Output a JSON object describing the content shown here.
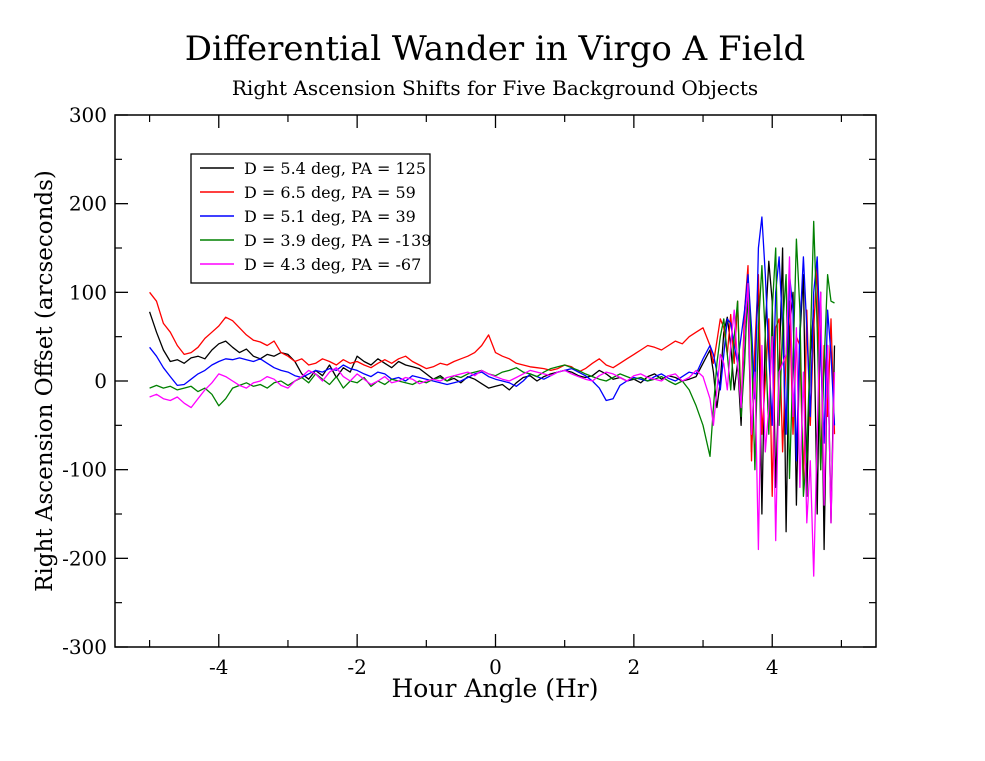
{
  "chart_data": {
    "type": "line",
    "title": "Differential Wander in Virgo A Field",
    "subtitle": "Right Ascension Shifts for Five Background Objects",
    "xlabel": "Hour Angle (Hr)",
    "ylabel": "Right Ascension Offset (arcseconds)",
    "xlim": [
      -5.5,
      5.5
    ],
    "ylim": [
      -300,
      300
    ],
    "x_major_ticks": [
      -4,
      -2,
      0,
      2,
      4
    ],
    "x_tick_labels": [
      "-4",
      "-2",
      "0",
      "2",
      "4"
    ],
    "x_minor_ticks": [
      -5,
      -3,
      -1,
      1,
      3,
      5
    ],
    "y_major_ticks": [
      -300,
      -200,
      -100,
      0,
      100,
      200,
      300
    ],
    "y_tick_labels": [
      "-300",
      "-200",
      "-100",
      "0",
      "100",
      "200",
      "300"
    ],
    "y_minor_ticks": [
      -250,
      -150,
      -50,
      50,
      150,
      250
    ],
    "legend_position": "top-left",
    "series": [
      {
        "name": "D = 5.4 deg, PA = 125",
        "color": "#000000",
        "x": [
          -5.0,
          -4.9,
          -4.8,
          -4.7,
          -4.6,
          -4.5,
          -4.4,
          -4.3,
          -4.2,
          -4.1,
          -4.0,
          -3.9,
          -3.8,
          -3.7,
          -3.6,
          -3.5,
          -3.4,
          -3.3,
          -3.2,
          -3.1,
          -3.0,
          -2.9,
          -2.8,
          -2.7,
          -2.6,
          -2.5,
          -2.4,
          -2.3,
          -2.2,
          -2.1,
          -2.0,
          -1.9,
          -1.8,
          -1.7,
          -1.6,
          -1.5,
          -1.4,
          -1.3,
          -1.2,
          -1.1,
          -1.0,
          -0.9,
          -0.8,
          -0.7,
          -0.6,
          -0.5,
          -0.4,
          -0.3,
          -0.2,
          -0.1,
          0.0,
          0.1,
          0.2,
          0.3,
          0.4,
          0.5,
          0.6,
          0.7,
          0.8,
          0.9,
          1.0,
          1.1,
          1.2,
          1.3,
          1.4,
          1.5,
          1.6,
          1.7,
          1.8,
          1.9,
          2.0,
          2.1,
          2.2,
          2.3,
          2.4,
          2.5,
          2.6,
          2.7,
          2.8,
          2.9,
          3.0,
          3.1,
          3.15,
          3.2,
          3.25,
          3.3,
          3.35,
          3.4,
          3.45,
          3.5,
          3.55,
          3.6,
          3.65,
          3.7,
          3.75,
          3.8,
          3.85,
          3.9,
          3.95,
          4.0,
          4.05,
          4.1,
          4.15,
          4.2,
          4.25,
          4.3,
          4.35,
          4.4,
          4.45,
          4.5,
          4.55,
          4.6,
          4.65,
          4.7,
          4.75,
          4.8,
          4.85,
          4.9
        ],
        "values": [
          78,
          55,
          35,
          22,
          24,
          20,
          26,
          28,
          25,
          35,
          42,
          45,
          38,
          32,
          36,
          28,
          25,
          30,
          28,
          32,
          30,
          22,
          8,
          2,
          12,
          6,
          18,
          4,
          15,
          10,
          28,
          22,
          18,
          25,
          20,
          15,
          22,
          18,
          16,
          14,
          8,
          2,
          6,
          0,
          3,
          -2,
          5,
          2,
          -3,
          -8,
          -6,
          -4,
          -10,
          -2,
          4,
          6,
          0,
          5,
          8,
          10,
          12,
          10,
          6,
          4,
          6,
          12,
          8,
          2,
          4,
          0,
          2,
          -2,
          5,
          8,
          2,
          6,
          4,
          0,
          2,
          5,
          20,
          35,
          10,
          -30,
          0,
          55,
          72,
          40,
          -10,
          20,
          -50,
          60,
          90,
          -80,
          20,
          110,
          -150,
          60,
          135,
          90,
          -120,
          10,
          150,
          -170,
          60,
          100,
          -140,
          50,
          120,
          -130,
          30,
          80,
          -150,
          100,
          -190,
          40,
          -160,
          40
        ]
      },
      {
        "name": "D = 6.5 deg, PA = 59",
        "color": "#ff0000",
        "x": [
          -5.0,
          -4.9,
          -4.8,
          -4.7,
          -4.6,
          -4.5,
          -4.4,
          -4.3,
          -4.2,
          -4.1,
          -4.0,
          -3.9,
          -3.8,
          -3.7,
          -3.6,
          -3.5,
          -3.4,
          -3.3,
          -3.2,
          -3.1,
          -3.0,
          -2.9,
          -2.8,
          -2.7,
          -2.6,
          -2.5,
          -2.4,
          -2.3,
          -2.2,
          -2.1,
          -2.0,
          -1.9,
          -1.8,
          -1.7,
          -1.6,
          -1.5,
          -1.4,
          -1.3,
          -1.2,
          -1.1,
          -1.0,
          -0.9,
          -0.8,
          -0.7,
          -0.6,
          -0.5,
          -0.4,
          -0.3,
          -0.2,
          -0.1,
          0.0,
          0.1,
          0.2,
          0.3,
          0.4,
          0.5,
          0.6,
          0.7,
          0.8,
          0.9,
          1.0,
          1.1,
          1.2,
          1.3,
          1.4,
          1.5,
          1.6,
          1.7,
          1.8,
          1.9,
          2.0,
          2.1,
          2.2,
          2.3,
          2.4,
          2.5,
          2.6,
          2.7,
          2.8,
          2.9,
          3.0,
          3.1,
          3.15,
          3.2,
          3.25,
          3.3,
          3.35,
          3.4,
          3.45,
          3.5,
          3.55,
          3.6,
          3.65,
          3.7,
          3.75,
          3.8,
          3.85,
          3.9,
          3.95,
          4.0,
          4.05,
          4.1,
          4.15,
          4.2,
          4.25,
          4.3,
          4.35,
          4.4,
          4.45,
          4.5,
          4.55,
          4.6,
          4.65,
          4.7,
          4.75,
          4.8,
          4.85,
          4.9
        ],
        "values": [
          100,
          90,
          65,
          55,
          40,
          30,
          32,
          38,
          48,
          55,
          62,
          72,
          68,
          60,
          52,
          46,
          44,
          40,
          45,
          32,
          28,
          22,
          25,
          18,
          20,
          25,
          22,
          18,
          24,
          20,
          22,
          18,
          15,
          20,
          24,
          20,
          25,
          28,
          22,
          18,
          14,
          16,
          20,
          18,
          22,
          25,
          28,
          32,
          40,
          52,
          32,
          28,
          25,
          20,
          18,
          16,
          15,
          14,
          12,
          14,
          18,
          16,
          10,
          14,
          20,
          25,
          18,
          15,
          20,
          25,
          30,
          35,
          40,
          38,
          35,
          40,
          45,
          42,
          50,
          55,
          60,
          40,
          20,
          45,
          70,
          60,
          30,
          75,
          20,
          90,
          -30,
          80,
          130,
          -90,
          40,
          120,
          -60,
          0,
          70,
          -130,
          60,
          70,
          -80,
          30,
          90,
          -60,
          50,
          40,
          -120,
          80,
          -50,
          60,
          130,
          -100,
          40,
          -40,
          70,
          -60
        ]
      },
      {
        "name": "D = 5.1 deg, PA = 39",
        "color": "#0000ff",
        "x": [
          -5.0,
          -4.9,
          -4.8,
          -4.7,
          -4.6,
          -4.5,
          -4.4,
          -4.3,
          -4.2,
          -4.1,
          -4.0,
          -3.9,
          -3.8,
          -3.7,
          -3.6,
          -3.5,
          -3.4,
          -3.3,
          -3.2,
          -3.1,
          -3.0,
          -2.9,
          -2.8,
          -2.7,
          -2.6,
          -2.5,
          -2.4,
          -2.3,
          -2.2,
          -2.1,
          -2.0,
          -1.9,
          -1.8,
          -1.7,
          -1.6,
          -1.5,
          -1.4,
          -1.3,
          -1.2,
          -1.1,
          -1.0,
          -0.9,
          -0.8,
          -0.7,
          -0.6,
          -0.5,
          -0.4,
          -0.3,
          -0.2,
          -0.1,
          0.0,
          0.1,
          0.2,
          0.3,
          0.4,
          0.5,
          0.6,
          0.7,
          0.8,
          0.9,
          1.0,
          1.1,
          1.2,
          1.3,
          1.4,
          1.5,
          1.6,
          1.7,
          1.8,
          1.9,
          2.0,
          2.1,
          2.2,
          2.3,
          2.4,
          2.5,
          2.6,
          2.7,
          2.8,
          2.9,
          3.0,
          3.1,
          3.15,
          3.2,
          3.25,
          3.3,
          3.35,
          3.4,
          3.45,
          3.5,
          3.55,
          3.6,
          3.65,
          3.7,
          3.75,
          3.8,
          3.85,
          3.9,
          3.95,
          4.0,
          4.05,
          4.1,
          4.15,
          4.2,
          4.25,
          4.3,
          4.35,
          4.4,
          4.45,
          4.5,
          4.55,
          4.6,
          4.65,
          4.7,
          4.75,
          4.8,
          4.85,
          4.9
        ],
        "values": [
          38,
          28,
          15,
          5,
          -5,
          -4,
          2,
          8,
          12,
          18,
          22,
          25,
          24,
          26,
          24,
          22,
          25,
          20,
          15,
          12,
          10,
          6,
          4,
          8,
          12,
          10,
          14,
          12,
          18,
          14,
          12,
          8,
          5,
          10,
          8,
          2,
          4,
          0,
          6,
          4,
          2,
          0,
          -2,
          -4,
          -2,
          0,
          4,
          8,
          10,
          5,
          2,
          0,
          -2,
          -6,
          0,
          8,
          5,
          2,
          6,
          10,
          12,
          14,
          10,
          6,
          0,
          -8,
          -22,
          -20,
          -5,
          0,
          4,
          2,
          0,
          5,
          8,
          3,
          0,
          5,
          10,
          8,
          25,
          40,
          30,
          10,
          -10,
          30,
          70,
          65,
          40,
          20,
          50,
          80,
          120,
          60,
          -20,
          150,
          185,
          120,
          30,
          -50,
          100,
          140,
          60,
          -60,
          120,
          80,
          -90,
          60,
          140,
          60,
          -40,
          100,
          140,
          30,
          -70,
          80,
          30,
          -50
        ]
      },
      {
        "name": "D = 3.9 deg, PA = -139",
        "color": "#008000",
        "x": [
          -5.0,
          -4.9,
          -4.8,
          -4.7,
          -4.6,
          -4.5,
          -4.4,
          -4.3,
          -4.2,
          -4.1,
          -4.0,
          -3.9,
          -3.8,
          -3.7,
          -3.6,
          -3.5,
          -3.4,
          -3.3,
          -3.2,
          -3.1,
          -3.0,
          -2.9,
          -2.8,
          -2.7,
          -2.6,
          -2.5,
          -2.4,
          -2.3,
          -2.2,
          -2.1,
          -2.0,
          -1.9,
          -1.8,
          -1.7,
          -1.6,
          -1.5,
          -1.4,
          -1.3,
          -1.2,
          -1.1,
          -1.0,
          -0.9,
          -0.8,
          -0.7,
          -0.6,
          -0.5,
          -0.4,
          -0.3,
          -0.2,
          -0.1,
          0.0,
          0.1,
          0.2,
          0.3,
          0.4,
          0.5,
          0.6,
          0.7,
          0.8,
          0.9,
          1.0,
          1.1,
          1.2,
          1.3,
          1.4,
          1.5,
          1.6,
          1.7,
          1.8,
          1.9,
          2.0,
          2.1,
          2.2,
          2.3,
          2.4,
          2.5,
          2.6,
          2.7,
          2.8,
          2.9,
          3.0,
          3.1,
          3.15,
          3.2,
          3.25,
          3.3,
          3.35,
          3.4,
          3.45,
          3.5,
          3.55,
          3.6,
          3.65,
          3.7,
          3.75,
          3.8,
          3.85,
          3.9,
          3.95,
          4.0,
          4.05,
          4.1,
          4.15,
          4.2,
          4.25,
          4.3,
          4.35,
          4.4,
          4.45,
          4.5,
          4.55,
          4.6,
          4.65,
          4.7,
          4.75,
          4.8,
          4.85,
          4.9
        ],
        "values": [
          -8,
          -5,
          -8,
          -6,
          -10,
          -8,
          -6,
          -12,
          -8,
          -15,
          -28,
          -20,
          -8,
          -5,
          -2,
          -6,
          -4,
          -8,
          -2,
          0,
          -5,
          0,
          4,
          -2,
          8,
          2,
          -4,
          5,
          -8,
          0,
          -2,
          4,
          -6,
          0,
          -4,
          2,
          0,
          -2,
          -4,
          0,
          -2,
          2,
          4,
          0,
          6,
          4,
          8,
          10,
          12,
          8,
          6,
          10,
          12,
          15,
          10,
          8,
          5,
          10,
          14,
          16,
          18,
          15,
          12,
          8,
          5,
          2,
          0,
          4,
          8,
          5,
          2,
          4,
          0,
          2,
          5,
          0,
          -4,
          0,
          -10,
          -28,
          -50,
          -85,
          -30,
          20,
          50,
          70,
          30,
          -10,
          50,
          90,
          -40,
          20,
          110,
          40,
          -100,
          60,
          130,
          50,
          -60,
          80,
          150,
          -50,
          60,
          120,
          -110,
          20,
          160,
          80,
          -130,
          -80,
          40,
          180,
          60,
          -100,
          20,
          120,
          90,
          88
        ]
      },
      {
        "name": "D = 4.3 deg, PA = -67",
        "color": "#ff00ff",
        "x": [
          -5.0,
          -4.9,
          -4.8,
          -4.7,
          -4.6,
          -4.5,
          -4.4,
          -4.3,
          -4.2,
          -4.1,
          -4.0,
          -3.9,
          -3.8,
          -3.7,
          -3.6,
          -3.5,
          -3.4,
          -3.3,
          -3.2,
          -3.1,
          -3.0,
          -2.9,
          -2.8,
          -2.7,
          -2.6,
          -2.5,
          -2.4,
          -2.3,
          -2.2,
          -2.1,
          -2.0,
          -1.9,
          -1.8,
          -1.7,
          -1.6,
          -1.5,
          -1.4,
          -1.3,
          -1.2,
          -1.1,
          -1.0,
          -0.9,
          -0.8,
          -0.7,
          -0.6,
          -0.5,
          -0.4,
          -0.3,
          -0.2,
          -0.1,
          0.0,
          0.1,
          0.2,
          0.3,
          0.4,
          0.5,
          0.6,
          0.7,
          0.8,
          0.9,
          1.0,
          1.1,
          1.2,
          1.3,
          1.4,
          1.5,
          1.6,
          1.7,
          1.8,
          1.9,
          2.0,
          2.1,
          2.2,
          2.3,
          2.4,
          2.5,
          2.6,
          2.7,
          2.8,
          2.9,
          3.0,
          3.1,
          3.15,
          3.2,
          3.25,
          3.3,
          3.35,
          3.4,
          3.45,
          3.5,
          3.55,
          3.6,
          3.65,
          3.7,
          3.75,
          3.8,
          3.85,
          3.9,
          3.95,
          4.0,
          4.05,
          4.1,
          4.15,
          4.2,
          4.25,
          4.3,
          4.35,
          4.4,
          4.45,
          4.5,
          4.55,
          4.6,
          4.65,
          4.7,
          4.75,
          4.8,
          4.85,
          4.9
        ],
        "values": [
          -18,
          -15,
          -20,
          -22,
          -18,
          -25,
          -30,
          -20,
          -10,
          -2,
          8,
          5,
          0,
          -5,
          -8,
          -2,
          0,
          5,
          2,
          -5,
          -8,
          0,
          5,
          12,
          8,
          0,
          10,
          15,
          5,
          0,
          8,
          2,
          -4,
          0,
          5,
          -2,
          0,
          4,
          2,
          -3,
          0,
          2,
          0,
          4,
          6,
          8,
          10,
          6,
          12,
          8,
          5,
          2,
          0,
          4,
          8,
          12,
          10,
          8,
          6,
          10,
          12,
          8,
          5,
          2,
          0,
          6,
          10,
          8,
          4,
          0,
          6,
          8,
          4,
          2,
          0,
          6,
          8,
          0,
          4,
          12,
          5,
          -20,
          -50,
          -10,
          30,
          20,
          -10,
          40,
          80,
          20,
          -30,
          60,
          110,
          -60,
          10,
          -190,
          40,
          -80,
          -30,
          50,
          -180,
          10,
          20,
          30,
          140,
          -40,
          60,
          -120,
          10,
          -160,
          -90,
          -220,
          -60,
          100,
          -140,
          40,
          -160,
          10
        ]
      }
    ]
  }
}
